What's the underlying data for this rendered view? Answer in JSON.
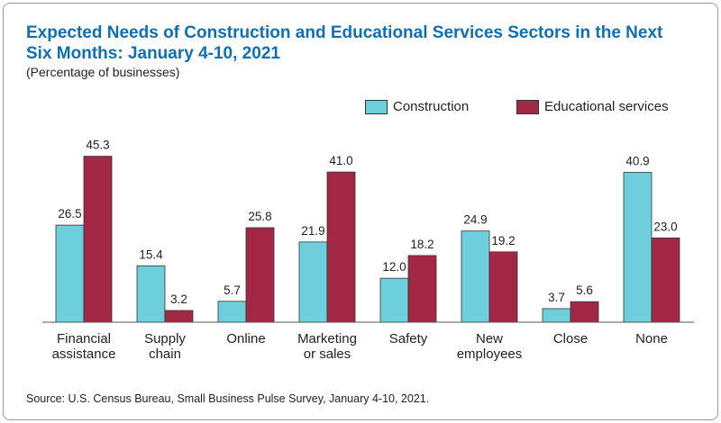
{
  "title": "Expected Needs of Construction and Educational Services Sectors in the Next Six Months: January 4-10, 2021",
  "subtitle": "(Percentage of businesses)",
  "source": "Source: U.S. Census Bureau, Small Business Pulse Survey, January 4-10, 2021.",
  "colors": {
    "construction": "#6dcfdc",
    "educational_services": "#a32845",
    "title": "#0f6fb5"
  },
  "chart_data": {
    "type": "bar",
    "title": "Expected Needs of Construction and Educational Services Sectors in the Next Six Months: January 4-10, 2021",
    "ylabel": "(Percentage of businesses)",
    "categories": [
      [
        "Financial",
        "assistance"
      ],
      [
        "Supply",
        "chain"
      ],
      [
        "Online"
      ],
      [
        "Marketing",
        "or sales"
      ],
      [
        "Safety"
      ],
      [
        "New",
        "employees"
      ],
      [
        "Close"
      ],
      [
        "None"
      ]
    ],
    "series": [
      {
        "name": "Construction",
        "color": "#6dcfdc",
        "values": [
          26.5,
          15.4,
          5.7,
          21.9,
          12.0,
          24.9,
          3.7,
          40.9
        ]
      },
      {
        "name": "Educational services",
        "color": "#a32845",
        "values": [
          45.3,
          3.2,
          25.8,
          41.0,
          18.2,
          19.2,
          5.6,
          23.0
        ]
      }
    ],
    "ylim": [
      0,
      50
    ],
    "grid": false,
    "legend": "top-right"
  }
}
